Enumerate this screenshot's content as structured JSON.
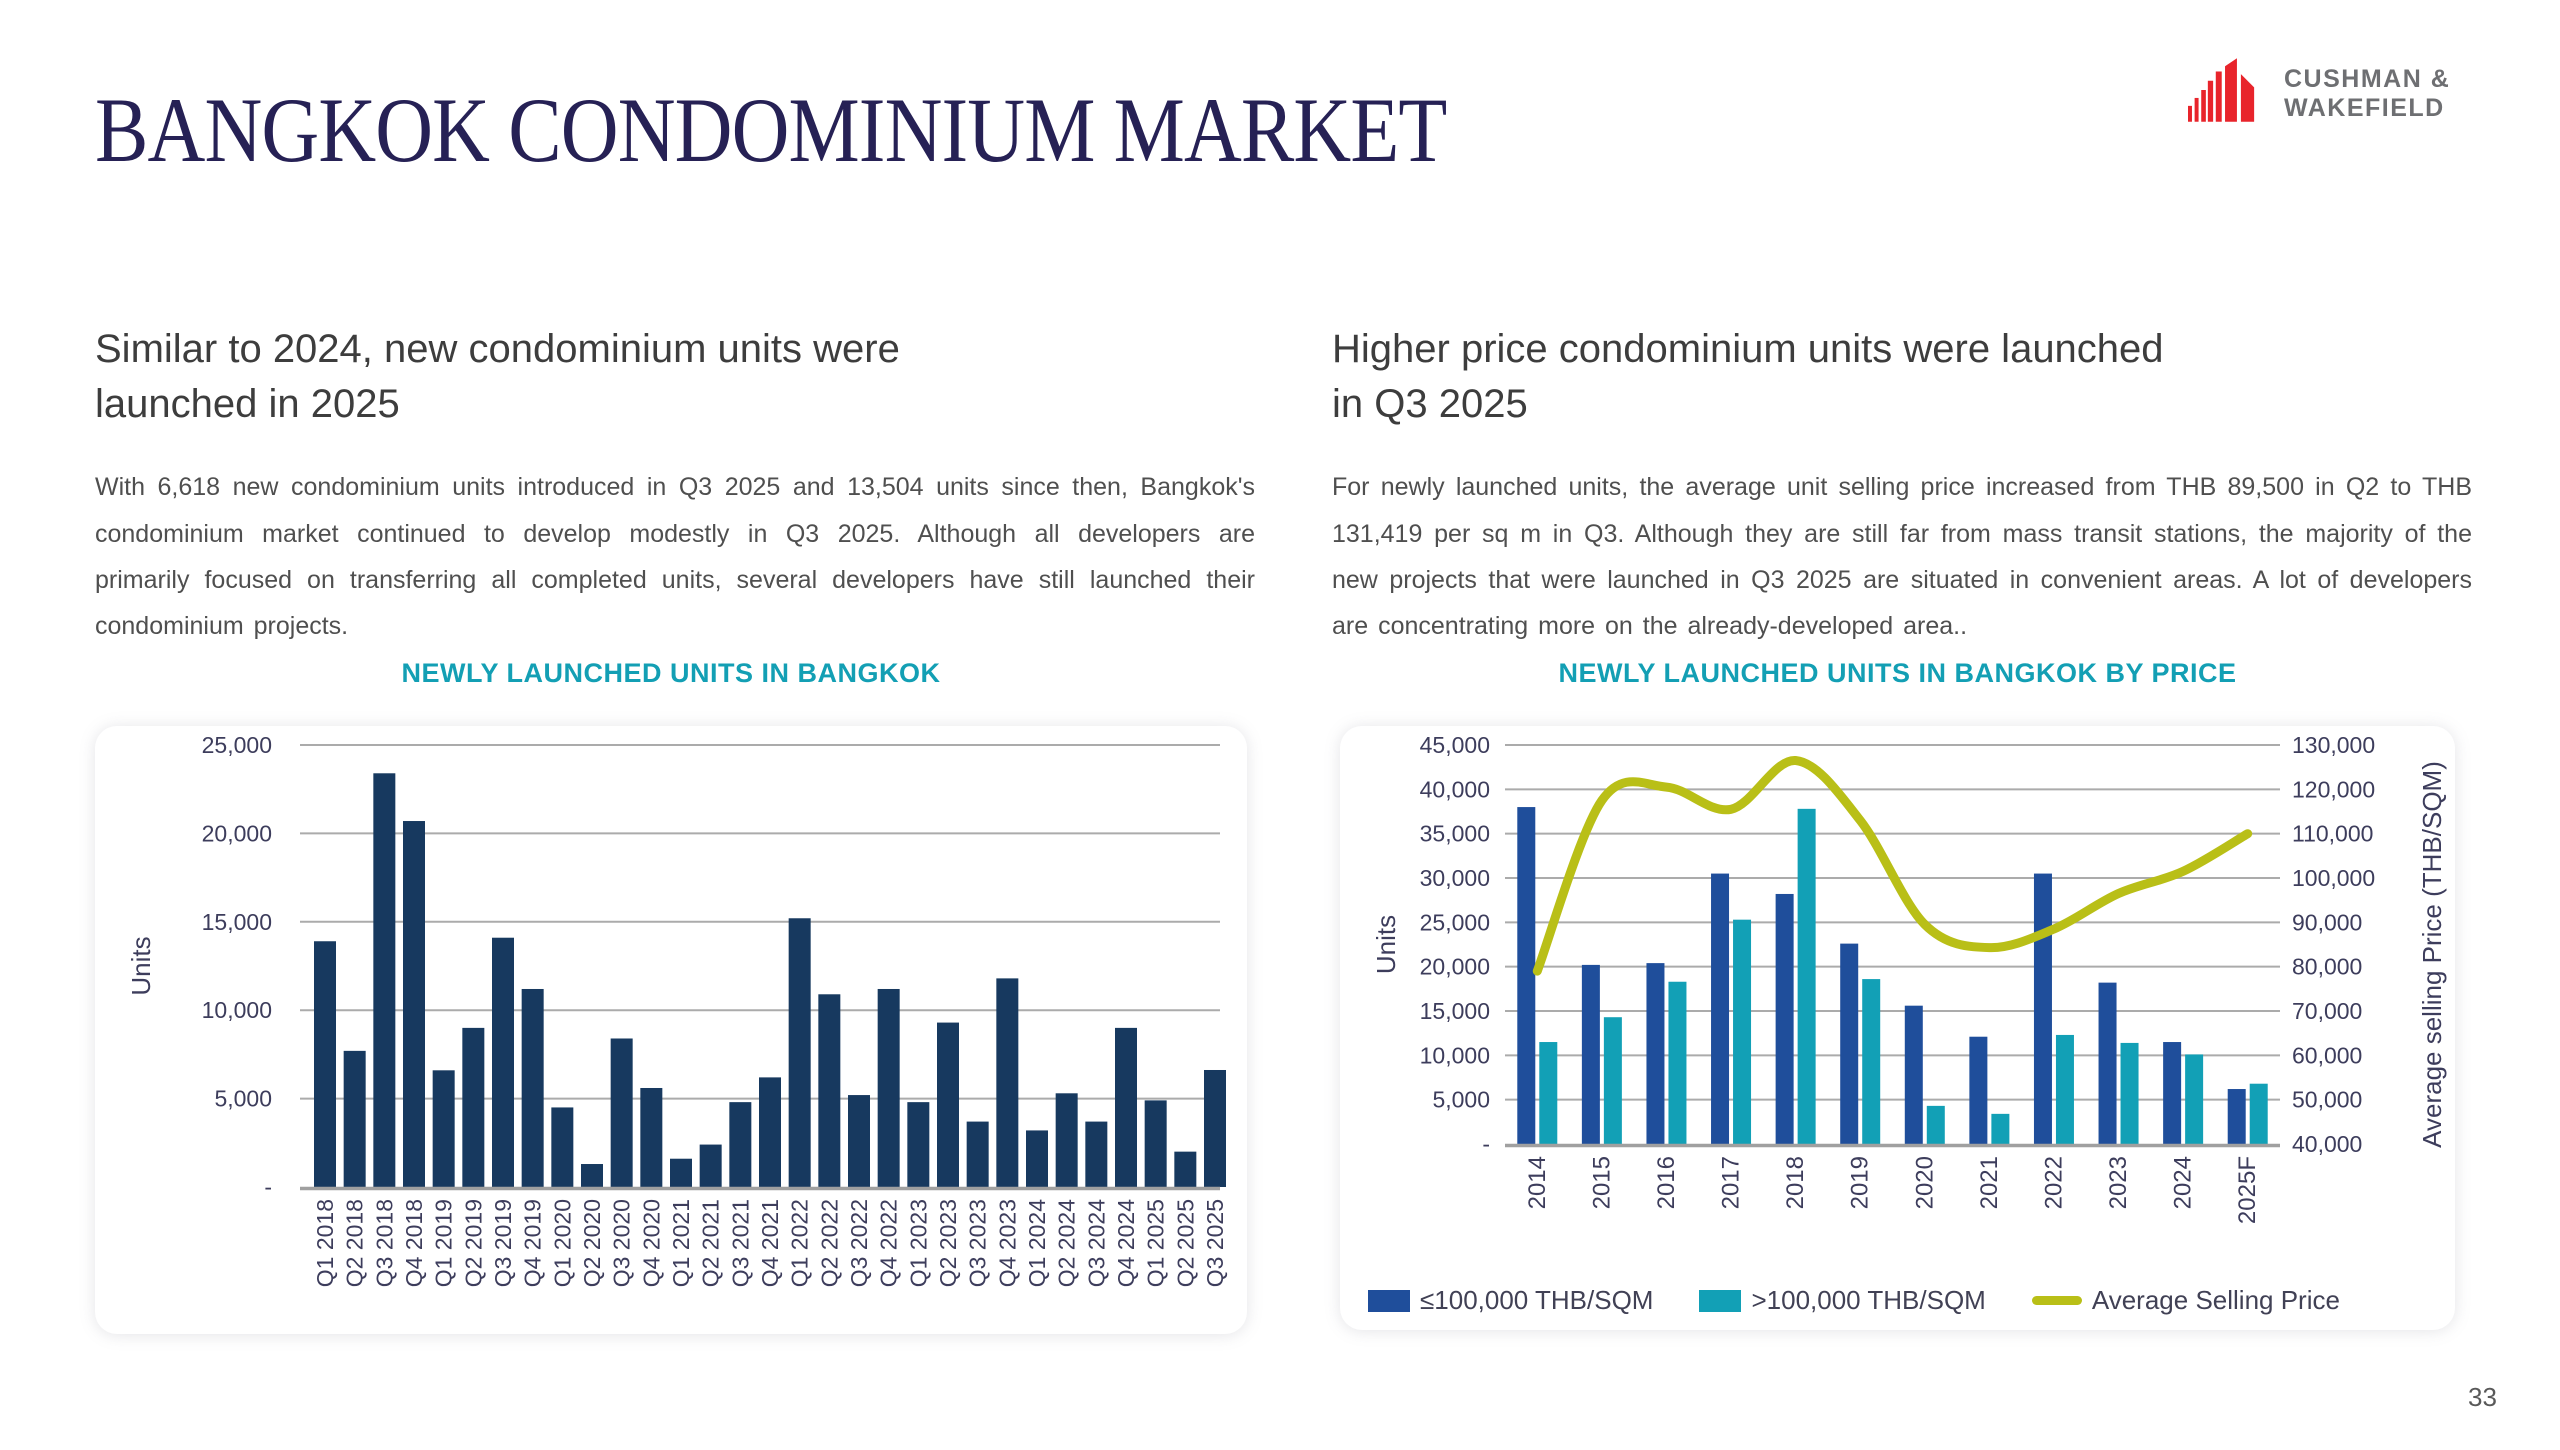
{
  "slide": {
    "title": "BANGKOK CONDOMINIUM MARKET",
    "page_number": "33",
    "logo": {
      "line1": "CUSHMAN &",
      "line2": "WAKEFIELD"
    }
  },
  "left_section": {
    "heading_line1": "Similar to 2024, new condominium units were",
    "heading_line2": "launched in 2025",
    "body": "With 6,618 new condominium units introduced in Q3 2025 and 13,504 units since then, Bangkok's condominium market continued to develop modestly in Q3 2025. Although all developers are primarily focused on transferring all completed units, several developers have still launched their condominium projects."
  },
  "right_section": {
    "heading_line1": "Higher price condominium units were launched",
    "heading_line2": "in Q3 2025",
    "body": "For newly launched units, the average unit selling price increased from THB 89,500 in Q2 to THB 131,419 per sq m in Q3. Although they are still far from mass transit stations, the majority of the new projects that were launched in Q3 2025 are situated in convenient areas. A lot of developers are concentrating more on the already-developed area.."
  },
  "chart_data": [
    {
      "type": "bar",
      "title": "NEWLY LAUNCHED UNITS IN BANGKOK",
      "ylabel": "Units",
      "ylim": [
        0,
        25000
      ],
      "ytick_labels": [
        "25,000",
        "20,000",
        "15,000",
        "10,000",
        "5,000",
        "-"
      ],
      "bar_color": "#17395F",
      "grid": true,
      "categories": [
        "Q1 2018",
        "Q2 2018",
        "Q3 2018",
        "Q4 2018",
        "Q1 2019",
        "Q2 2019",
        "Q3 2019",
        "Q4 2019",
        "Q1 2020",
        "Q2 2020",
        "Q3 2020",
        "Q4 2020",
        "Q1 2021",
        "Q2 2021",
        "Q3 2021",
        "Q4 2021",
        "Q1 2022",
        "Q2 2022",
        "Q3 2022",
        "Q4 2022",
        "Q1 2023",
        "Q2 2023",
        "Q3 2023",
        "Q4 2023",
        "Q1 2024",
        "Q2 2024",
        "Q3 2024",
        "Q4 2024",
        "Q1 2025",
        "Q2 2025",
        "Q3 2025"
      ],
      "values": [
        13900,
        7700,
        23400,
        20700,
        6600,
        9000,
        14100,
        11200,
        4500,
        1300,
        8400,
        5600,
        1600,
        2400,
        4800,
        6200,
        15200,
        10900,
        5200,
        11200,
        4800,
        9300,
        3700,
        11800,
        3200,
        5300,
        3700,
        9000,
        4900,
        2000,
        6618
      ]
    },
    {
      "type": "bar+line",
      "title": "NEWLY LAUNCHED UNITS IN BANGKOK BY PRICE",
      "ylabel_left": "Units",
      "ylabel_right": "Average selling Price (THB/SQM)",
      "ylim_left": [
        0,
        45000
      ],
      "ylim_right": [
        40000,
        130000
      ],
      "ytick_labels_left": [
        "45,000",
        "40,000",
        "35,000",
        "30,000",
        "25,000",
        "20,000",
        "15,000",
        "10,000",
        "5,000",
        "-"
      ],
      "ytick_labels_right": [
        "130,000",
        "120,000",
        "110,000",
        "100,000",
        "90,000",
        "80,000",
        "70,000",
        "60,000",
        "50,000",
        "40,000"
      ],
      "legend_position": "bottom",
      "grid": true,
      "categories": [
        "2014",
        "2015",
        "2016",
        "2017",
        "2018",
        "2019",
        "2020",
        "2021",
        "2022",
        "2023",
        "2024",
        "2025F"
      ],
      "series": [
        {
          "name": "≤100,000 THB/SQM",
          "color": "#1F4E9B",
          "values": [
            38000,
            20200,
            20400,
            30500,
            28200,
            22600,
            15600,
            12100,
            30500,
            18200,
            11500,
            6200
          ]
        },
        {
          "name": ">100,000 THB/SQM",
          "color": "#12A0B6",
          "values": [
            11500,
            14300,
            18300,
            25300,
            37800,
            18600,
            4300,
            3400,
            12300,
            11400,
            10100,
            6800
          ]
        }
      ],
      "line": {
        "name": "Average Selling Price",
        "color": "#B9BF17",
        "values": [
          79000,
          117500,
          120500,
          115500,
          126500,
          113000,
          89500,
          84300,
          88500,
          96500,
          101500,
          110000
        ]
      }
    }
  ],
  "colors": {
    "title_navy": "#262155",
    "heading": "#3D3D3D",
    "body": "#4F4F4F",
    "chart_title_teal": "#139FB4",
    "tick": "#3D3D5C",
    "grid": "#ABABAB",
    "baseline": "#A0A0A0",
    "logo_red": "#E8242B",
    "logo_gray": "#6E6F72",
    "page_number": "#595959"
  }
}
